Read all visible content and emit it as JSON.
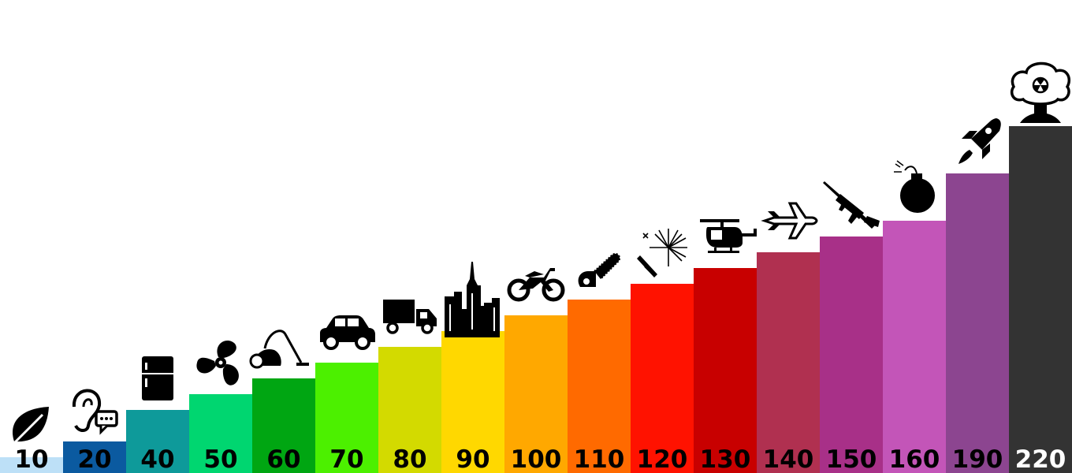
{
  "chart_data": {
    "type": "bar",
    "categories": [
      "leaf",
      "ear-chat",
      "fridge",
      "fan",
      "vacuum",
      "car",
      "truck",
      "city",
      "motorcycle",
      "chainsaw",
      "fireworks",
      "helicopter",
      "jet",
      "rifle",
      "bomb",
      "rocket",
      "nuclear-explosion"
    ],
    "values": [
      10,
      20,
      40,
      50,
      60,
      70,
      80,
      90,
      100,
      110,
      120,
      130,
      140,
      150,
      160,
      190,
      220
    ],
    "labels": [
      "10",
      "20",
      "40",
      "50",
      "60",
      "70",
      "80",
      "90",
      "100",
      "110",
      "120",
      "130",
      "140",
      "150",
      "160",
      "190",
      "220"
    ],
    "colors": [
      "#bde0f7",
      "#0b5aa0",
      "#0e9a9a",
      "#00d670",
      "#00a612",
      "#4cf000",
      "#d3da00",
      "#ffd800",
      "#ffa800",
      "#ff6a00",
      "#ff1200",
      "#c80000",
      "#b03050",
      "#a83088",
      "#c355b8",
      "#8c4590",
      "#333333"
    ],
    "label_colors": [
      "#000000",
      "#000000",
      "#000000",
      "#000000",
      "#000000",
      "#000000",
      "#000000",
      "#000000",
      "#000000",
      "#000000",
      "#000000",
      "#000000",
      "#000000",
      "#000000",
      "#000000",
      "#000000",
      "#ffffff"
    ],
    "icons": [
      "leaf-icon",
      "ear-chat-icon",
      "fridge-icon",
      "fan-icon",
      "vacuum-icon",
      "car-icon",
      "truck-icon",
      "city-icon",
      "motorcycle-icon",
      "chainsaw-icon",
      "fireworks-icon",
      "helicopter-icon",
      "jet-icon",
      "rifle-icon",
      "bomb-icon",
      "rocket-icon",
      "nuclear-explosion-icon"
    ],
    "ylim": [
      0,
      220
    ],
    "grid": false,
    "legend": "none"
  }
}
